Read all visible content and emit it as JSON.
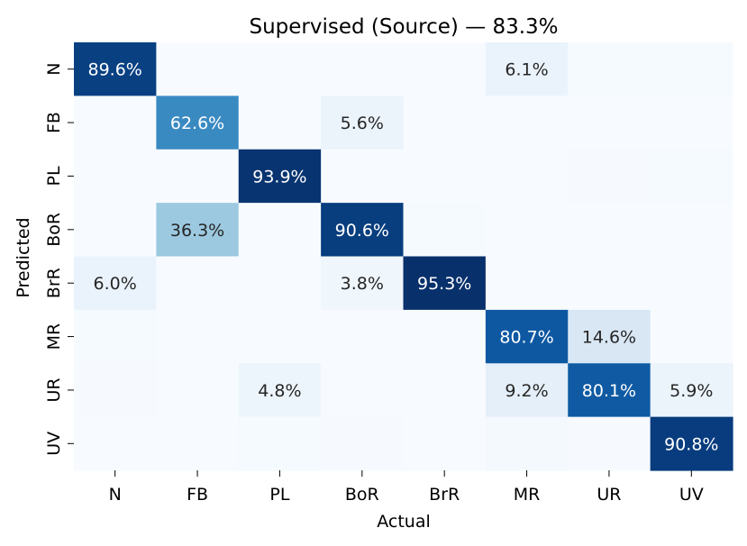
{
  "chart_data": {
    "type": "heatmap",
    "title": "Supervised (Source) — 83.3%",
    "xlabel": "Actual",
    "ylabel": "Predicted",
    "x_categories": [
      "N",
      "FB",
      "PL",
      "BoR",
      "BrR",
      "MR",
      "UR",
      "UV"
    ],
    "y_categories": [
      "N",
      "FB",
      "PL",
      "BoR",
      "BrR",
      "MR",
      "UR",
      "UV"
    ],
    "value_unit": "%",
    "label_threshold": 5,
    "colormap": "Blues",
    "legend": "none",
    "values": [
      [
        89.6,
        0.0,
        0.0,
        0.0,
        0.0,
        6.1,
        1.0,
        0.8
      ],
      [
        0.0,
        62.6,
        0.0,
        5.6,
        0.0,
        0.0,
        0.0,
        0.0
      ],
      [
        0.0,
        0.0,
        93.9,
        0.0,
        0.0,
        0.0,
        0.5,
        1.0
      ],
      [
        0.0,
        36.3,
        0.0,
        90.6,
        0.8,
        0.0,
        0.0,
        0.0
      ],
      [
        6.0,
        0.0,
        0.0,
        3.8,
        95.3,
        0.0,
        0.0,
        0.0
      ],
      [
        1.0,
        0.0,
        0.0,
        0.0,
        0.0,
        80.7,
        14.6,
        0.0
      ],
      [
        0.5,
        0.0,
        4.8,
        0.0,
        0.0,
        9.2,
        80.1,
        5.9
      ],
      [
        0.0,
        0.0,
        1.0,
        0.5,
        0.0,
        1.5,
        0.5,
        90.8
      ]
    ],
    "cell_labels": [
      [
        "89.6%",
        "",
        "",
        "",
        "",
        "6.1%",
        "",
        ""
      ],
      [
        "",
        "62.6%",
        "",
        "5.6%",
        "",
        "",
        "",
        ""
      ],
      [
        "",
        "",
        "93.9%",
        "",
        "",
        "",
        "",
        ""
      ],
      [
        "",
        "36.3%",
        "",
        "90.6%",
        "",
        "",
        "",
        ""
      ],
      [
        "6.0%",
        "",
        "",
        "3.8%",
        "95.3%",
        "",
        "",
        ""
      ],
      [
        "",
        "",
        "",
        "",
        "",
        "80.7%",
        "14.6%",
        ""
      ],
      [
        "",
        "",
        "4.8%",
        "",
        "",
        "9.2%",
        "80.1%",
        "5.9%"
      ],
      [
        "",
        "",
        "",
        "",
        "",
        "",
        "",
        "90.8%"
      ]
    ]
  }
}
